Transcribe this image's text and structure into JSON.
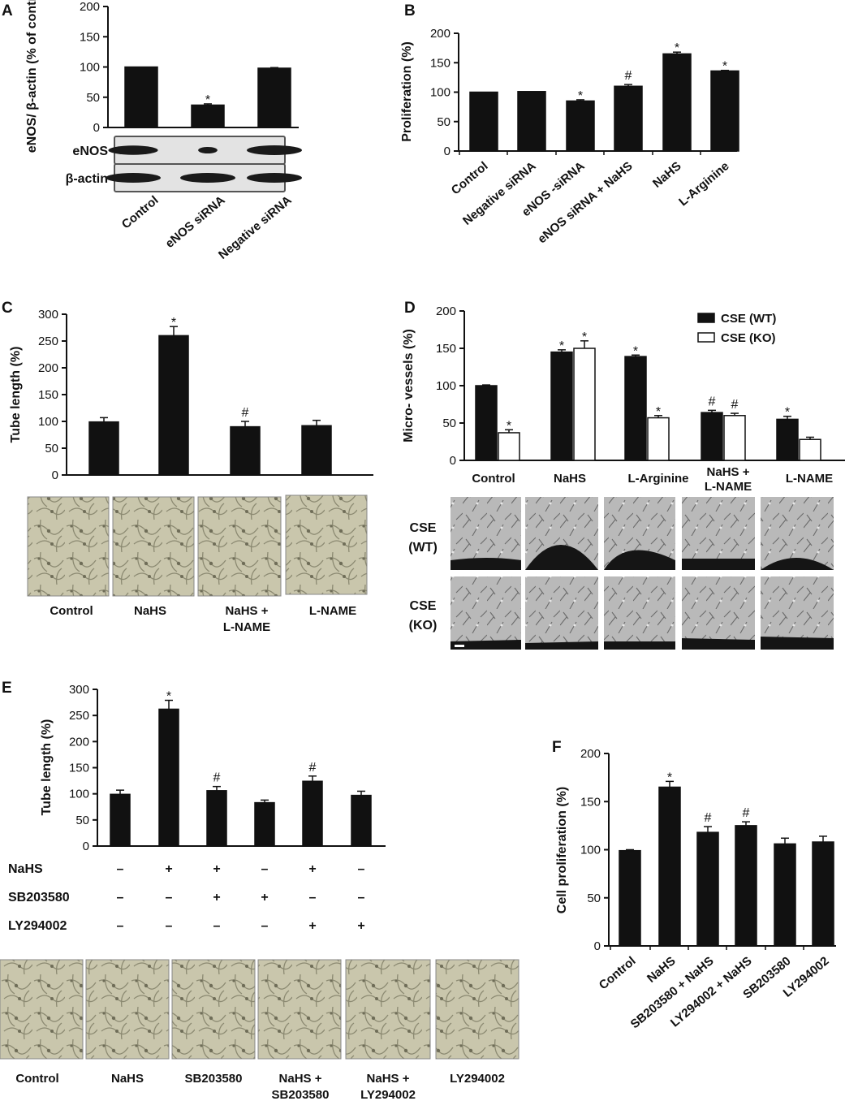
{
  "chart_data": [
    {
      "panel": "A",
      "type": "bar",
      "ylabel": "eNOS/ β-actin (% of control)",
      "ylim": [
        0,
        200
      ],
      "yticks": [
        0,
        50,
        100,
        150,
        200
      ],
      "categories": [
        "Control",
        "eNOS siRNA",
        "Negative siRNA"
      ],
      "values": [
        100,
        37,
        98
      ],
      "errors": [
        0,
        2,
        1
      ],
      "annotations": [
        "",
        "*",
        ""
      ],
      "blot_rows": [
        "eNOS",
        "β-actin"
      ],
      "blot_bands": {
        "eNOS": [
          0.9,
          0.35,
          1.0
        ],
        "β-actin": [
          1.0,
          1.0,
          1.0
        ]
      }
    },
    {
      "panel": "B",
      "type": "bar",
      "ylabel": "Proliferation (%)",
      "ylim": [
        0,
        200
      ],
      "yticks": [
        0,
        50,
        100,
        150,
        200
      ],
      "categories": [
        "Control",
        "Negative siRNA",
        "eNOS -siRNA",
        "eNOS siRNA + NaHS",
        "NaHS",
        "L-Arginine"
      ],
      "values": [
        100,
        101,
        85,
        110,
        165,
        136
      ],
      "errors": [
        0,
        0,
        2,
        3,
        3,
        1
      ],
      "annotations": [
        "",
        "",
        "*",
        "#",
        "*",
        "*"
      ]
    },
    {
      "panel": "C",
      "type": "bar",
      "ylabel": "Tube length (%)",
      "ylim": [
        0,
        300
      ],
      "yticks": [
        0,
        50,
        100,
        150,
        200,
        250,
        300
      ],
      "categories": [
        "Control",
        "NaHS",
        "NaHS + L-NAME",
        "L-NAME"
      ],
      "values": [
        99,
        260,
        90,
        92
      ],
      "errors": [
        8,
        17,
        10,
        10
      ],
      "annotations": [
        "",
        "*",
        "#",
        ""
      ]
    },
    {
      "panel": "D",
      "type": "bar",
      "ylabel": "Micro- vessels (%)",
      "ylim": [
        0,
        200
      ],
      "yticks": [
        0,
        50,
        100,
        150,
        200
      ],
      "categories": [
        "Control",
        "NaHS",
        "L-Arginine",
        "NaHS + L-NAME",
        "L-NAME"
      ],
      "series": [
        {
          "name": "CSE (WT)",
          "values": [
            100,
            145,
            139,
            64,
            55
          ],
          "errors": [
            1,
            3,
            2,
            3,
            4
          ],
          "annotations": [
            "",
            "*",
            "*",
            "#",
            "*"
          ],
          "color": "#111111"
        },
        {
          "name": "CSE (KO)",
          "values": [
            37,
            150,
            57,
            60,
            28
          ],
          "errors": [
            4,
            10,
            3,
            3,
            3
          ],
          "annotations": [
            "*",
            "*",
            "*",
            "#",
            ""
          ],
          "color": "#ffffff"
        }
      ],
      "legend": "top-right",
      "image_rows": [
        "CSE (WT)",
        "CSE (KO)"
      ]
    },
    {
      "panel": "E",
      "type": "bar",
      "ylabel": "Tube length (%)",
      "ylim": [
        0,
        300
      ],
      "yticks": [
        0,
        50,
        100,
        150,
        200,
        250,
        300
      ],
      "values": [
        99,
        262,
        106,
        83,
        124,
        97
      ],
      "errors": [
        8,
        17,
        8,
        5,
        10,
        8
      ],
      "annotations": [
        "",
        "*",
        "#",
        "",
        "#",
        ""
      ],
      "treatment_rows": [
        {
          "label": "NaHS",
          "marks": [
            "–",
            "+",
            "+",
            "–",
            "+",
            "–"
          ]
        },
        {
          "label": "SB203580",
          "marks": [
            "–",
            "–",
            "+",
            "+",
            "–",
            "–"
          ]
        },
        {
          "label": "LY294002",
          "marks": [
            "–",
            "–",
            "–",
            "–",
            "+",
            "+"
          ]
        }
      ],
      "image_labels": [
        "Control",
        "NaHS",
        "SB203580",
        "NaHS + SB203580",
        "NaHS + LY294002",
        "LY294002"
      ]
    },
    {
      "panel": "F",
      "type": "bar",
      "ylabel": "Cell proliferation (%)",
      "ylim": [
        0,
        200
      ],
      "yticks": [
        0,
        50,
        100,
        150,
        200
      ],
      "categories": [
        "Control",
        "NaHS",
        "SB203580 + NaHS",
        "LY294002 + NaHS",
        "SB203580",
        "LY294002"
      ],
      "values": [
        99,
        165,
        118,
        125,
        106,
        108
      ],
      "errors": [
        1,
        6,
        6,
        4,
        6,
        6
      ],
      "annotations": [
        "",
        "*",
        "#",
        "#",
        "",
        ""
      ]
    }
  ],
  "panel_letters": [
    "A",
    "B",
    "C",
    "D",
    "E",
    "F"
  ]
}
